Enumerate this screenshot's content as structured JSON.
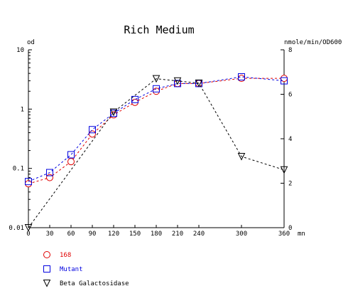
{
  "chart_data": {
    "type": "line",
    "title": "Rich Medium",
    "xlabel": "mn",
    "ylabel_left": "od",
    "ylabel_right": "nmole/min/OD600",
    "x_ticks": [
      0,
      30,
      60,
      90,
      120,
      150,
      180,
      210,
      240,
      300,
      360
    ],
    "xlim": [
      0,
      360
    ],
    "ylim_left": [
      0.01,
      10
    ],
    "yscale_left": "log",
    "y_ticks_left": [
      0.01,
      0.1,
      1,
      10
    ],
    "y_tick_labels_left": [
      "0.01",
      "0.1",
      "1",
      "10"
    ],
    "ylim_right": [
      0,
      8
    ],
    "y_ticks_right": [
      0,
      2,
      4,
      6,
      8
    ],
    "grid": false,
    "legend_position": "bottom-left",
    "series": [
      {
        "name": "168",
        "axis": "left",
        "color": "#e00000",
        "marker": "circle",
        "x": [
          0,
          30,
          60,
          90,
          120,
          150,
          180,
          210,
          240,
          300,
          360
        ],
        "y": [
          0.055,
          0.07,
          0.13,
          0.38,
          0.8,
          1.3,
          2.0,
          2.7,
          2.7,
          3.3,
          3.3
        ]
      },
      {
        "name": "Mutant",
        "axis": "left",
        "color": "#0000e0",
        "marker": "square",
        "x": [
          0,
          30,
          60,
          90,
          120,
          150,
          180,
          210,
          240,
          300,
          360
        ],
        "y": [
          0.06,
          0.085,
          0.17,
          0.45,
          0.85,
          1.45,
          2.2,
          2.7,
          2.7,
          3.5,
          3.0
        ]
      },
      {
        "name": "Beta Galactosidase",
        "axis": "right",
        "color": "#000000",
        "marker": "triangle-down",
        "x": [
          0,
          120,
          180,
          210,
          240,
          300,
          360
        ],
        "y": [
          0,
          5.2,
          6.7,
          6.6,
          6.5,
          3.2,
          2.6
        ]
      }
    ]
  }
}
